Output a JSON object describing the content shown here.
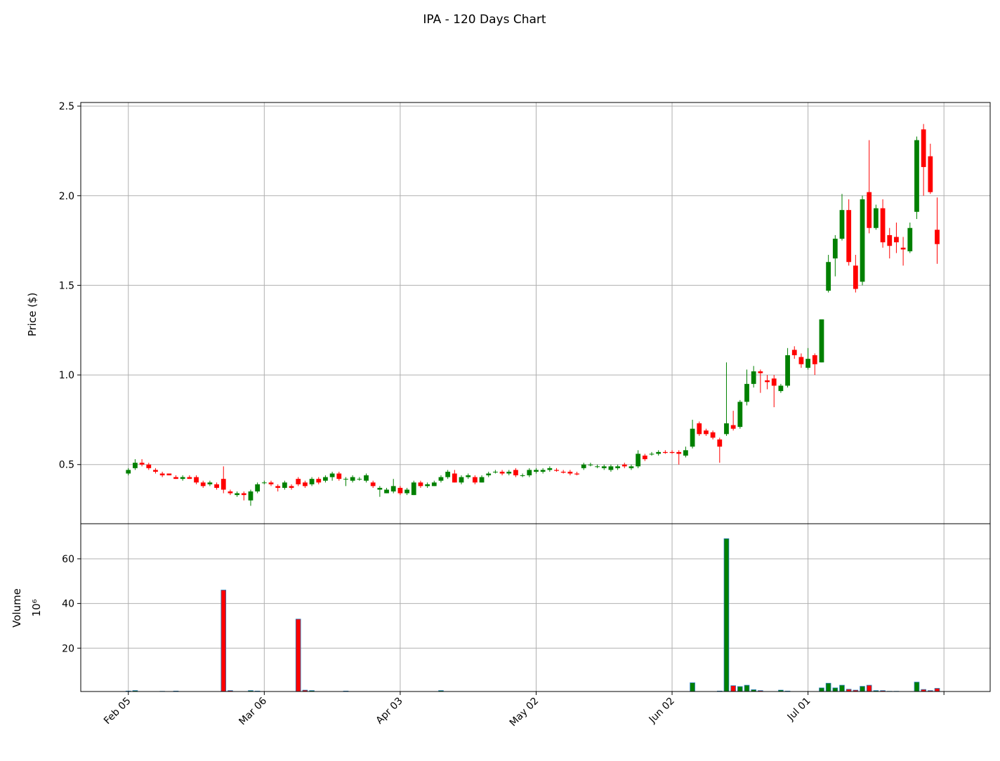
{
  "chart_data": {
    "type": "candlestick",
    "title": "IPA - 120 Days Chart",
    "ylabel": "Price ($)",
    "volume_label": "Volume",
    "volume_unit": "10⁶",
    "up_color": "#008000",
    "down_color": "#ff0000",
    "volume_edge_color": "#1f77b4",
    "grid": true,
    "categories": [
      "Feb 05",
      null,
      null,
      null,
      null,
      null,
      null,
      null,
      null,
      null,
      null,
      null,
      null,
      null,
      null,
      null,
      null,
      null,
      null,
      null,
      "Mar 06",
      null,
      null,
      null,
      null,
      null,
      null,
      null,
      null,
      null,
      null,
      null,
      null,
      null,
      null,
      null,
      null,
      null,
      null,
      null,
      "Apr 03",
      null,
      null,
      null,
      null,
      null,
      null,
      null,
      null,
      null,
      null,
      null,
      null,
      null,
      null,
      null,
      null,
      null,
      null,
      null,
      "May 02",
      null,
      null,
      null,
      null,
      null,
      null,
      null,
      null,
      null,
      null,
      null,
      null,
      null,
      null,
      null,
      null,
      null,
      null,
      null,
      "Jun 02",
      null,
      null,
      null,
      null,
      null,
      null,
      null,
      null,
      null,
      null,
      null,
      null,
      null,
      null,
      null,
      null,
      null,
      null,
      null,
      "Jul 01",
      null,
      null,
      null,
      null,
      null,
      null,
      null,
      null,
      null,
      null,
      null,
      null,
      null,
      null,
      null,
      null,
      null,
      null,
      null
    ],
    "xticks": [
      0,
      20,
      40,
      60,
      80,
      100,
      120
    ],
    "xlim": [
      -7,
      126.8
    ],
    "open": [
      0.45,
      0.48,
      0.51,
      0.5,
      0.47,
      0.45,
      0.45,
      0.43,
      0.42,
      0.43,
      0.43,
      0.4,
      0.39,
      0.39,
      0.42,
      0.35,
      0.33,
      0.34,
      0.3,
      0.35,
      0.4,
      0.4,
      0.38,
      0.37,
      0.38,
      0.42,
      0.4,
      0.39,
      0.42,
      0.41,
      0.43,
      0.45,
      0.42,
      0.41,
      0.42,
      0.41,
      0.4,
      0.36,
      0.34,
      0.35,
      0.37,
      0.34,
      0.33,
      0.4,
      0.38,
      0.38,
      0.41,
      0.43,
      0.45,
      0.4,
      0.43,
      0.43,
      0.4,
      0.44,
      0.46,
      0.46,
      0.45,
      0.47,
      0.44,
      0.44,
      0.46,
      0.46,
      0.47,
      0.47,
      0.46,
      0.46,
      0.45,
      0.48,
      0.5,
      0.49,
      0.48,
      0.47,
      0.48,
      0.5,
      0.48,
      0.49,
      0.55,
      0.56,
      0.56,
      0.57,
      0.57,
      0.57,
      0.55,
      0.6,
      0.73,
      0.69,
      0.68,
      0.64,
      0.67,
      0.72,
      0.71,
      0.85,
      0.95,
      1.02,
      0.97,
      0.98,
      0.91,
      0.94,
      1.14,
      1.1,
      1.04,
      1.11,
      1.07,
      1.47,
      1.65,
      1.76,
      1.92,
      1.61,
      1.52,
      2.02,
      1.82,
      1.93,
      1.78,
      1.77,
      1.71,
      1.69,
      1.91,
      2.37,
      2.22,
      1.81
    ],
    "high": [
      0.48,
      0.53,
      0.53,
      0.51,
      0.48,
      0.46,
      0.45,
      0.44,
      0.44,
      0.44,
      0.44,
      0.41,
      0.41,
      0.4,
      0.49,
      0.36,
      0.35,
      0.35,
      0.36,
      0.4,
      0.41,
      0.41,
      0.39,
      0.41,
      0.39,
      0.43,
      0.41,
      0.43,
      0.43,
      0.44,
      0.46,
      0.46,
      0.43,
      0.44,
      0.43,
      0.45,
      0.41,
      0.38,
      0.37,
      0.42,
      0.38,
      0.37,
      0.41,
      0.41,
      0.4,
      0.41,
      0.44,
      0.47,
      0.47,
      0.44,
      0.45,
      0.44,
      0.44,
      0.46,
      0.47,
      0.47,
      0.47,
      0.48,
      0.45,
      0.48,
      0.48,
      0.48,
      0.49,
      0.48,
      0.47,
      0.47,
      0.46,
      0.51,
      0.51,
      0.5,
      0.5,
      0.5,
      0.5,
      0.51,
      0.5,
      0.58,
      0.56,
      0.57,
      0.58,
      0.58,
      0.58,
      0.58,
      0.6,
      0.75,
      0.74,
      0.7,
      0.69,
      0.65,
      1.07,
      0.8,
      0.86,
      1.03,
      1.05,
      1.03,
      1.0,
      1.0,
      0.95,
      1.15,
      1.16,
      1.12,
      1.15,
      1.12,
      1.31,
      1.67,
      1.78,
      2.01,
      1.98,
      1.67,
      2.0,
      2.31,
      1.95,
      1.98,
      1.82,
      1.85,
      1.77,
      1.85,
      2.33,
      2.4,
      2.29,
      1.99
    ],
    "low": [
      0.44,
      0.47,
      0.49,
      0.47,
      0.45,
      0.43,
      0.44,
      0.42,
      0.41,
      0.42,
      0.39,
      0.37,
      0.38,
      0.36,
      0.34,
      0.33,
      0.32,
      0.3,
      0.27,
      0.34,
      0.39,
      0.38,
      0.35,
      0.36,
      0.36,
      0.38,
      0.37,
      0.38,
      0.39,
      0.4,
      0.41,
      0.41,
      0.38,
      0.4,
      0.41,
      0.4,
      0.37,
      0.32,
      0.34,
      0.34,
      0.33,
      0.33,
      0.33,
      0.37,
      0.37,
      0.38,
      0.4,
      0.42,
      0.4,
      0.39,
      0.42,
      0.39,
      0.4,
      0.43,
      0.45,
      0.44,
      0.44,
      0.43,
      0.43,
      0.43,
      0.45,
      0.45,
      0.46,
      0.46,
      0.45,
      0.44,
      0.44,
      0.47,
      0.49,
      0.48,
      0.47,
      0.46,
      0.47,
      0.48,
      0.47,
      0.48,
      0.52,
      0.55,
      0.55,
      0.56,
      0.56,
      0.5,
      0.54,
      0.59,
      0.66,
      0.66,
      0.64,
      0.51,
      0.66,
      0.69,
      0.7,
      0.83,
      0.93,
      0.9,
      0.92,
      0.82,
      0.9,
      0.93,
      1.09,
      1.04,
      1.03,
      1.0,
      1.07,
      1.46,
      1.55,
      1.75,
      1.61,
      1.46,
      1.5,
      1.79,
      1.81,
      1.71,
      1.65,
      1.68,
      1.61,
      1.68,
      1.87,
      2.0,
      2.01,
      1.62
    ],
    "close": [
      0.47,
      0.51,
      0.5,
      0.48,
      0.46,
      0.44,
      0.44,
      0.42,
      0.43,
      0.42,
      0.4,
      0.38,
      0.4,
      0.37,
      0.36,
      0.34,
      0.34,
      0.33,
      0.35,
      0.39,
      0.4,
      0.39,
      0.37,
      0.4,
      0.37,
      0.39,
      0.38,
      0.42,
      0.4,
      0.43,
      0.45,
      0.42,
      0.42,
      0.43,
      0.42,
      0.44,
      0.38,
      0.37,
      0.36,
      0.38,
      0.34,
      0.36,
      0.4,
      0.38,
      0.39,
      0.4,
      0.43,
      0.46,
      0.4,
      0.43,
      0.44,
      0.4,
      0.43,
      0.45,
      0.46,
      0.45,
      0.46,
      0.44,
      0.44,
      0.47,
      0.47,
      0.47,
      0.48,
      0.465,
      0.455,
      0.45,
      0.445,
      0.5,
      0.5,
      0.49,
      0.49,
      0.49,
      0.49,
      0.49,
      0.49,
      0.56,
      0.53,
      0.56,
      0.57,
      0.565,
      0.565,
      0.56,
      0.58,
      0.7,
      0.67,
      0.67,
      0.65,
      0.6,
      0.73,
      0.7,
      0.85,
      0.95,
      1.02,
      1.01,
      0.96,
      0.94,
      0.94,
      1.11,
      1.11,
      1.06,
      1.09,
      1.06,
      1.31,
      1.63,
      1.76,
      1.92,
      1.63,
      1.48,
      1.98,
      1.82,
      1.93,
      1.74,
      1.72,
      1.74,
      1.7,
      1.82,
      2.31,
      2.16,
      2.02,
      1.73
    ],
    "volume": [
      0.8,
      1.0,
      0.6,
      0.5,
      0.3,
      0.7,
      0.3,
      0.8,
      0.3,
      0.3,
      0.5,
      0.3,
      0.4,
      0.6,
      46,
      1.0,
      0.5,
      0.5,
      1.0,
      0.8,
      0.3,
      0.3,
      0.3,
      0.3,
      0.5,
      33,
      1.2,
      1.0,
      0.3,
      0.3,
      0.6,
      0.3,
      0.8,
      0.3,
      0.3,
      0.3,
      0.3,
      0.3,
      0.3,
      0.3,
      0.3,
      0.3,
      0.5,
      0.3,
      0.3,
      0.3,
      1.0,
      0.3,
      0.3,
      0.3,
      0.5,
      0.3,
      0.5,
      0.3,
      0.5,
      0.3,
      0.3,
      0.3,
      0.3,
      0.3,
      0.3,
      0.3,
      0.3,
      0.3,
      0.3,
      0.3,
      0.3,
      0.3,
      0.3,
      0.3,
      0.3,
      0.3,
      0.3,
      0.3,
      0.3,
      0.5,
      0.3,
      0.3,
      0.3,
      0.3,
      0.3,
      0.3,
      0.5,
      4.5,
      0.3,
      0.3,
      0.3,
      0.8,
      69,
      3.2,
      2.8,
      3.4,
      1.4,
      1.0,
      0.6,
      0.6,
      1.2,
      0.8,
      0.5,
      0.3,
      0.6,
      0.3,
      2.2,
      4.3,
      2.2,
      3.4,
      1.6,
      1.2,
      2.9,
      3.4,
      1.0,
      1.0,
      0.7,
      0.7,
      0.5,
      0.5,
      4.8,
      1.5,
      1.0,
      2.0
    ],
    "ylim": [
      0.17,
      2.52
    ],
    "yticks": [
      0.5,
      {
        "value": 1.0,
        "label": "1.0"
      },
      1.5,
      {
        "value": 2.0,
        "label": "2.0"
      },
      2.5
    ],
    "volume_ylim": [
      0.6,
      75.7
    ],
    "volume_yticks": [
      20,
      40,
      60
    ]
  }
}
